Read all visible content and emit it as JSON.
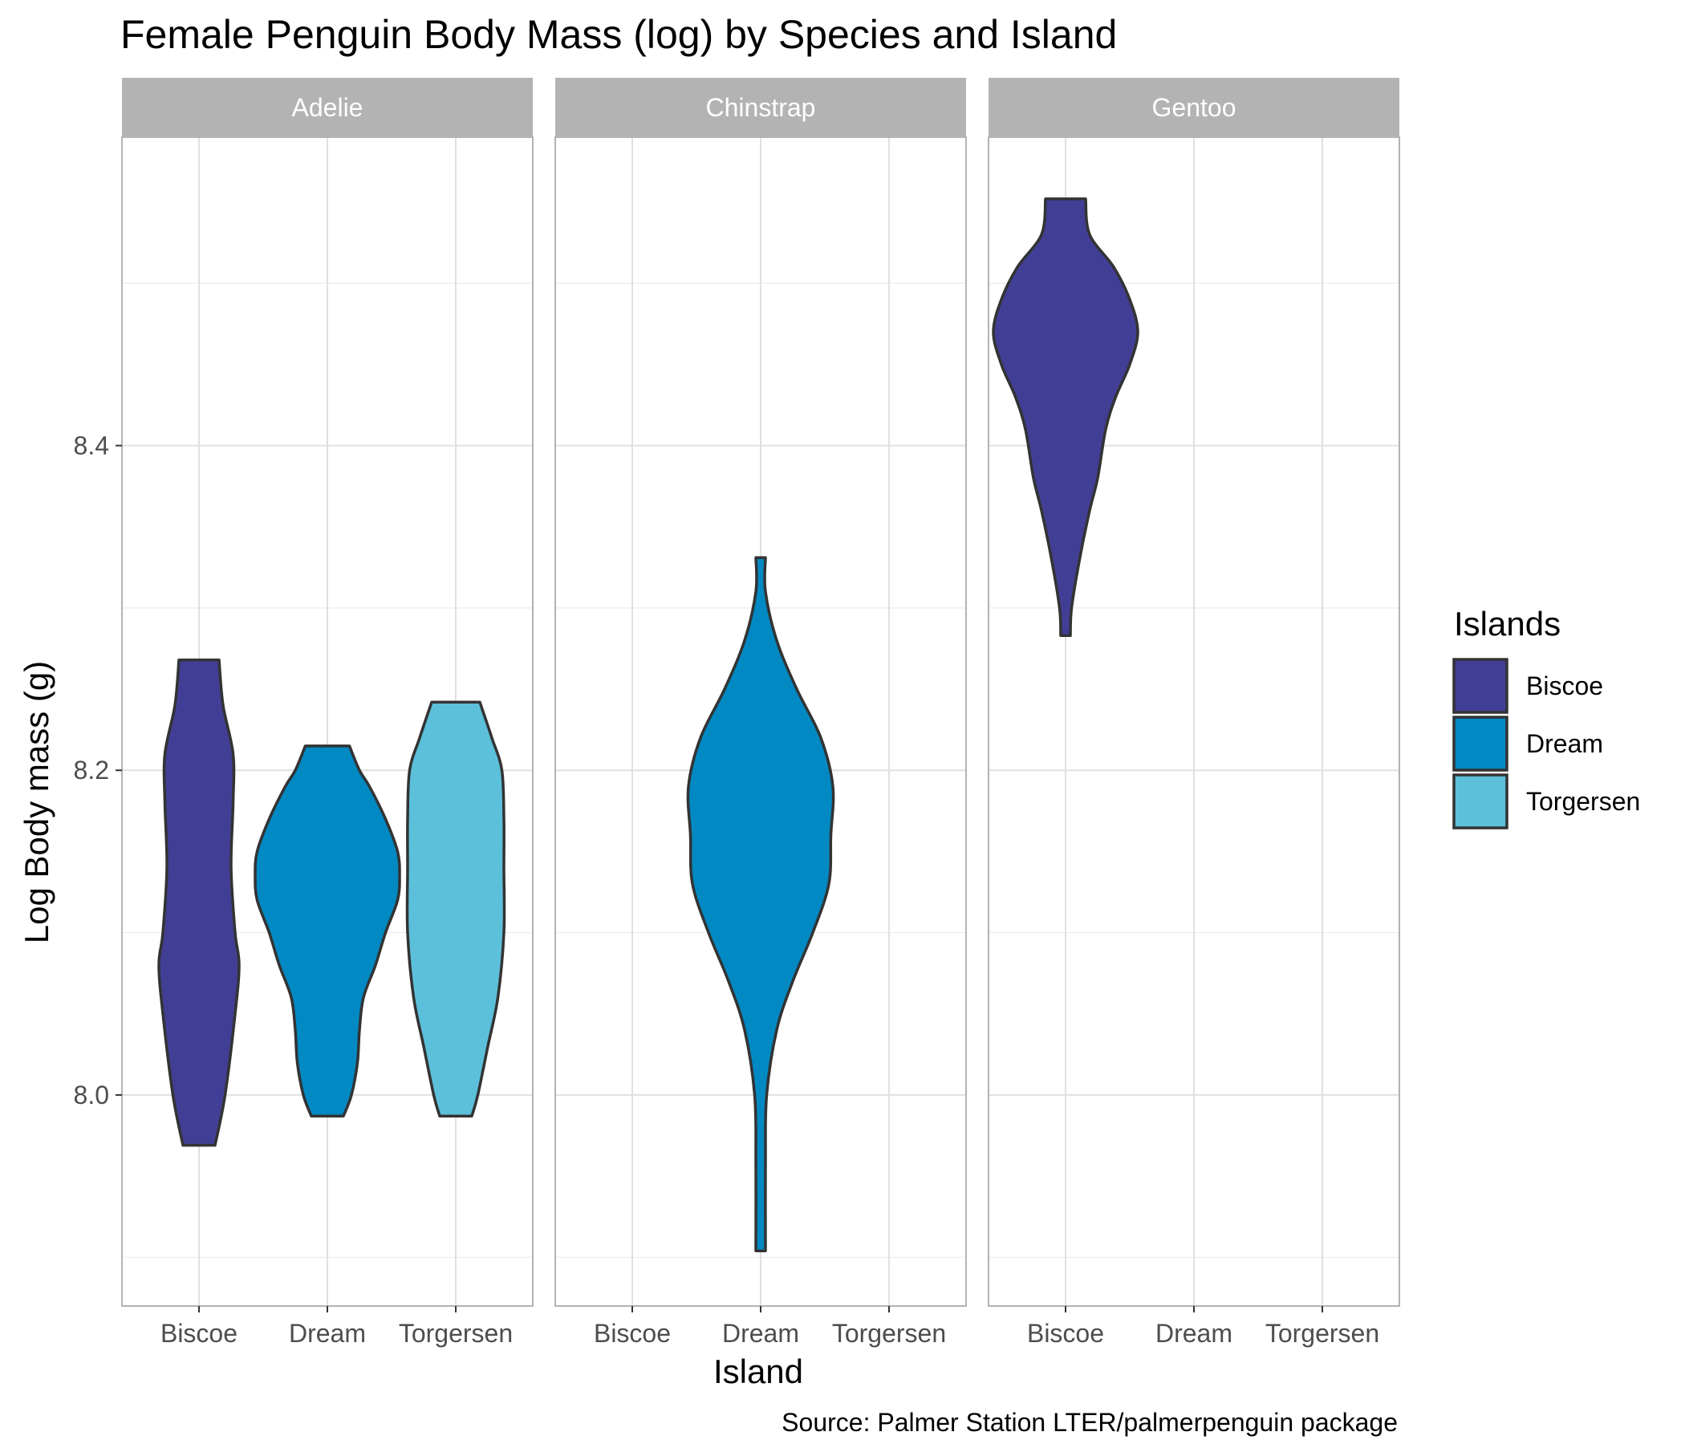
{
  "chart_data": {
    "type": "violin",
    "title": "Female Penguin Body Mass (log) by Species and Island",
    "xlabel": "Island",
    "ylabel": "Log Body mass (g)",
    "caption": "Source: Palmer Station LTER/palmerpenguin package",
    "ylim": [
      7.87,
      8.59
    ],
    "y_ticks": [
      8.0,
      8.2,
      8.4
    ],
    "y_tick_labels": [
      "8.0",
      "8.2",
      "8.4"
    ],
    "y_minor_ticks": [
      7.9,
      8.1,
      8.3,
      8.5
    ],
    "grid": true,
    "categories": [
      "Biscoe",
      "Dream",
      "Torgersen"
    ],
    "legend": {
      "title": "Islands",
      "placement": "right",
      "items": [
        {
          "label": "Biscoe",
          "color": "#413f95"
        },
        {
          "label": "Dream",
          "color": "#0089c3"
        },
        {
          "label": "Torgersen",
          "color": "#5cc0da"
        }
      ]
    },
    "facets": [
      {
        "name": "Adelie",
        "violins": [
          {
            "island": "Biscoe",
            "color": "#413f95",
            "profile": [
              [
                7.969,
                0.04
              ],
              [
                8.0,
                0.065
              ],
              [
                8.05,
                0.09
              ],
              [
                8.08,
                0.1
              ],
              [
                8.1,
                0.09
              ],
              [
                8.14,
                0.08
              ],
              [
                8.18,
                0.085
              ],
              [
                8.21,
                0.085
              ],
              [
                8.24,
                0.06
              ],
              [
                8.268,
                0.05
              ]
            ]
          },
          {
            "island": "Dream",
            "color": "#0089c3",
            "profile": [
              [
                7.987,
                0.04
              ],
              [
                8.0,
                0.06
              ],
              [
                8.02,
                0.075
              ],
              [
                8.04,
                0.08
              ],
              [
                8.06,
                0.09
              ],
              [
                8.08,
                0.12
              ],
              [
                8.1,
                0.145
              ],
              [
                8.12,
                0.175
              ],
              [
                8.135,
                0.18
              ],
              [
                8.15,
                0.175
              ],
              [
                8.17,
                0.145
              ],
              [
                8.19,
                0.105
              ],
              [
                8.2,
                0.08
              ],
              [
                8.215,
                0.055
              ]
            ]
          },
          {
            "island": "Torgersen",
            "color": "#5cc0da",
            "profile": [
              [
                7.987,
                0.04
              ],
              [
                8.0,
                0.055
              ],
              [
                8.03,
                0.08
              ],
              [
                8.06,
                0.105
              ],
              [
                8.1,
                0.12
              ],
              [
                8.14,
                0.12
              ],
              [
                8.17,
                0.12
              ],
              [
                8.2,
                0.115
              ],
              [
                8.22,
                0.09
              ],
              [
                8.242,
                0.06
              ]
            ]
          }
        ]
      },
      {
        "name": "Chinstrap",
        "violins": [
          {
            "island": "Dream",
            "color": "#0089c3",
            "profile": [
              [
                7.904,
                0.012
              ],
              [
                7.96,
                0.012
              ],
              [
                8.0,
                0.015
              ],
              [
                8.04,
                0.04
              ],
              [
                8.07,
                0.08
              ],
              [
                8.1,
                0.13
              ],
              [
                8.13,
                0.17
              ],
              [
                8.16,
                0.175
              ],
              [
                8.19,
                0.18
              ],
              [
                8.22,
                0.15
              ],
              [
                8.25,
                0.09
              ],
              [
                8.28,
                0.04
              ],
              [
                8.31,
                0.012
              ],
              [
                8.331,
                0.012
              ]
            ]
          }
        ]
      },
      {
        "name": "Gentoo",
        "violins": [
          {
            "island": "Biscoe",
            "color": "#413f95",
            "profile": [
              [
                8.283,
                0.012
              ],
              [
                8.3,
                0.015
              ],
              [
                8.33,
                0.035
              ],
              [
                8.36,
                0.06
              ],
              [
                8.38,
                0.08
              ],
              [
                8.41,
                0.1
              ],
              [
                8.43,
                0.125
              ],
              [
                8.45,
                0.16
              ],
              [
                8.47,
                0.18
              ],
              [
                8.49,
                0.16
              ],
              [
                8.51,
                0.12
              ],
              [
                8.53,
                0.06
              ],
              [
                8.552,
                0.05
              ]
            ]
          }
        ]
      }
    ]
  }
}
